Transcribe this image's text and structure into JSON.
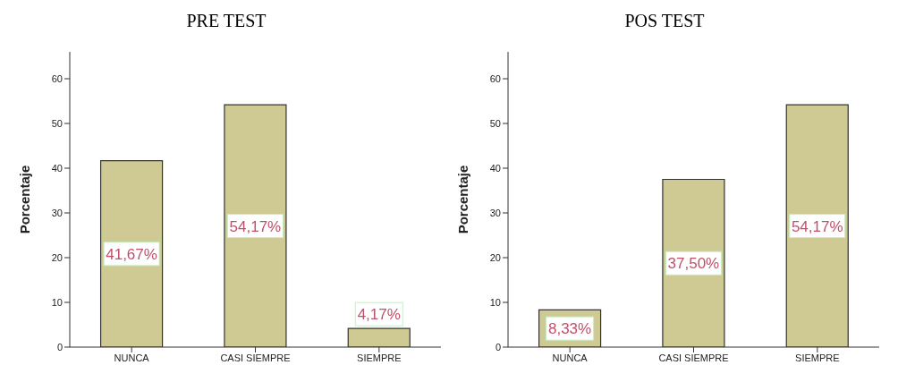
{
  "chart_data": [
    {
      "type": "bar",
      "title": "PRE TEST",
      "ylabel": "Porcentaje",
      "categories": [
        "NUNCA",
        "CASI SIEMPRE",
        "SIEMPRE"
      ],
      "values": [
        41.67,
        54.17,
        4.17
      ],
      "value_labels": [
        "41,67%",
        "54,17%",
        "4,17%"
      ],
      "color": "#cfca93",
      "ylim": [
        0,
        66
      ],
      "yticks": [
        0,
        10,
        20,
        30,
        40,
        50,
        60
      ]
    },
    {
      "type": "bar",
      "title": "POS TEST",
      "ylabel": "Porcentaje",
      "categories": [
        "NUNCA",
        "CASI SIEMPRE",
        "SIEMPRE"
      ],
      "values": [
        8.33,
        37.5,
        54.17
      ],
      "value_labels": [
        "8,33%",
        "37,50%",
        "54,17%"
      ],
      "color": "#cfca93",
      "ylim": [
        0,
        66
      ],
      "yticks": [
        0,
        10,
        20,
        30,
        40,
        50,
        60
      ]
    }
  ]
}
